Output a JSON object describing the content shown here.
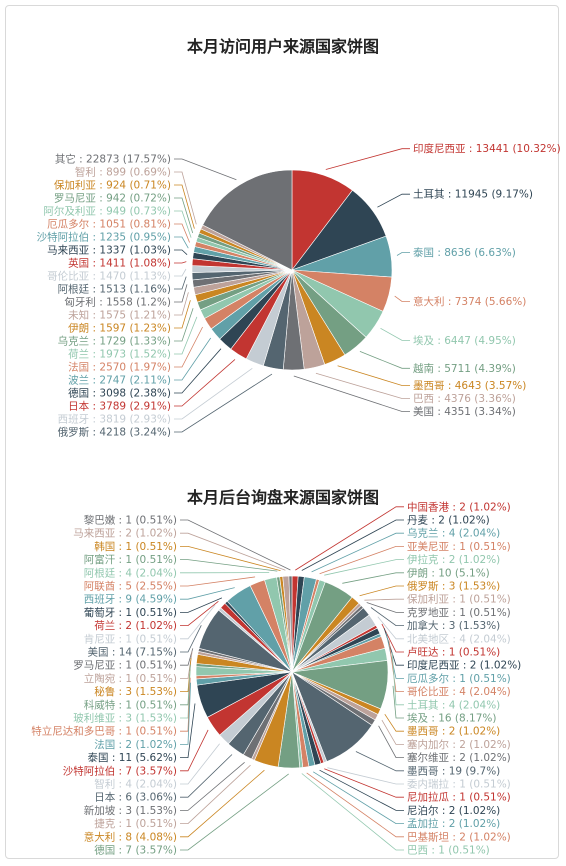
{
  "chart_data": [
    {
      "type": "pie",
      "title": "本月访问用户来源国家饼图",
      "labels": [
        "印度尼西亚",
        "土耳其",
        "泰国",
        "意大利",
        "埃及",
        "越南",
        "墨西哥",
        "巴西",
        "美国",
        "俄罗斯",
        "西班牙",
        "日本",
        "德国",
        "波兰",
        "法国",
        "荷兰",
        "乌克兰",
        "伊朗",
        "未知",
        "匈牙利",
        "阿根廷",
        "哥伦比亚",
        "英国",
        "马来西亚",
        "沙特阿拉伯",
        "厄瓜多尔",
        "阿尔及利亚",
        "罗马尼亚",
        "保加利亚",
        "智利",
        "其它"
      ],
      "values": [
        13441,
        11945,
        8636,
        7374,
        6447,
        5711,
        4643,
        4376,
        4351,
        4218,
        3819,
        3789,
        3098,
        2747,
        2570,
        1973,
        1729,
        1597,
        1575,
        1558,
        1513,
        1470,
        1411,
        1337,
        1235,
        1051,
        949,
        942,
        924,
        899,
        22873
      ],
      "percent_labels": [
        "10.32%",
        "9.17%",
        "6.63%",
        "5.66%",
        "4.95%",
        "4.39%",
        "3.57%",
        "3.36%",
        "3.34%",
        "3.24%",
        "2.93%",
        "2.91%",
        "2.38%",
        "2.11%",
        "1.97%",
        "1.52%",
        "1.33%",
        "1.23%",
        "1.21%",
        "1.2%",
        "1.16%",
        "1.13%",
        "1.08%",
        "1.03%",
        "0.95%",
        "0.81%",
        "0.73%",
        "0.72%",
        "0.71%",
        "0.69%",
        "17.57%"
      ],
      "colors": [
        "#c23531",
        "#2f4554",
        "#61a0a8",
        "#d48265",
        "#91c7ae",
        "#749f83",
        "#ca8622",
        "#bda29a",
        "#6e7074",
        "#546570",
        "#c4ccd3",
        "#c23531",
        "#2f4554",
        "#61a0a8",
        "#d48265",
        "#91c7ae",
        "#749f83",
        "#ca8622",
        "#bda29a",
        "#6e7074",
        "#546570",
        "#c4ccd3",
        "#c23531",
        "#2f4554",
        "#61a0a8",
        "#d48265",
        "#91c7ae",
        "#749f83",
        "#ca8622",
        "#bda29a",
        "#6e7074"
      ]
    },
    {
      "type": "pie",
      "title": "本月后台询盘来源国家饼图",
      "labels": [
        "中国香港",
        "丹麦",
        "乌克兰",
        "亚美尼亚",
        "伊拉克",
        "伊朗",
        "俄罗斯",
        "保加利亚",
        "克罗地亚",
        "加拿大",
        "北美地区",
        "卢旺达",
        "印度尼西亚",
        "厄瓜多尔",
        "哥伦比亚",
        "土耳其",
        "埃及",
        "墨西哥",
        "塞内加尔",
        "塞尔维亚",
        "墨西哥",
        "委内瑞拉",
        "尼加拉瓜",
        "尼泊尔",
        "孟加拉",
        "巴基斯坦",
        "巴西",
        "德国",
        "意大利",
        "捷克",
        "新加坡",
        "日本",
        "智利",
        "沙特阿拉伯",
        "泰国",
        "法国",
        "特立尼达和多巴哥",
        "玻利维亚",
        "科威特",
        "秘鲁",
        "立陶宛",
        "罗马尼亚",
        "美国",
        "肯尼亚",
        "荷兰",
        "葡萄牙",
        "西班牙",
        "阿联酋",
        "阿根廷",
        "阿富汗",
        "韩国",
        "马来西亚",
        "黎巴嫩"
      ],
      "values": [
        2,
        2,
        4,
        1,
        2,
        10,
        3,
        1,
        1,
        3,
        4,
        1,
        2,
        1,
        4,
        4,
        16,
        2,
        2,
        2,
        19,
        1,
        1,
        2,
        2,
        2,
        1,
        7,
        8,
        1,
        3,
        6,
        4,
        7,
        11,
        2,
        1,
        3,
        1,
        3,
        1,
        1,
        14,
        1,
        2,
        1,
        9,
        5,
        4,
        1,
        1,
        2,
        1
      ],
      "percent_labels": [
        "1.02%",
        "1.02%",
        "2.04%",
        "0.51%",
        "1.02%",
        "5.1%",
        "1.53%",
        "0.51%",
        "0.51%",
        "1.53%",
        "2.04%",
        "0.51%",
        "1.02%",
        "0.51%",
        "2.04%",
        "2.04%",
        "8.17%",
        "1.02%",
        "1.02%",
        "1.02%",
        "9.7%",
        "0.51%",
        "0.51%",
        "1.02%",
        "1.02%",
        "1.02%",
        "0.51%",
        "3.57%",
        "4.08%",
        "0.51%",
        "1.53%",
        "3.06%",
        "2.04%",
        "3.57%",
        "5.62%",
        "1.02%",
        "0.51%",
        "1.53%",
        "0.51%",
        "1.53%",
        "0.51%",
        "0.51%",
        "7.15%",
        "0.51%",
        "1.02%",
        "0.51%",
        "4.59%",
        "2.55%",
        "2.04%",
        "0.51%",
        "0.51%",
        "1.02%",
        "0.51%"
      ],
      "colors": [
        "#c23531",
        "#2f4554",
        "#61a0a8",
        "#d48265",
        "#91c7ae",
        "#749f83",
        "#ca8622",
        "#bda29a",
        "#6e7074",
        "#546570",
        "#c4ccd3"
      ]
    }
  ]
}
